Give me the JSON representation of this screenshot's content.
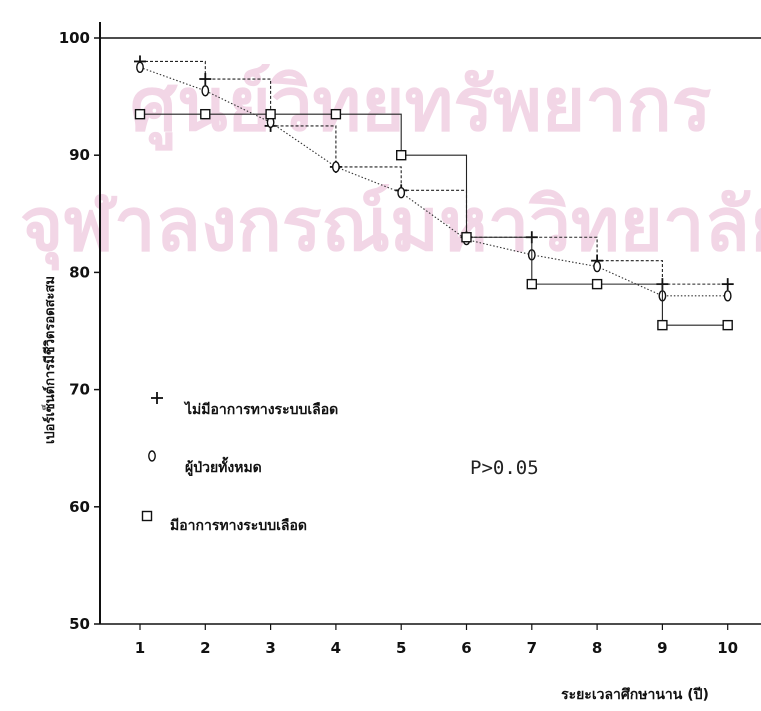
{
  "watermark": [
    "ศูนย์วิทยทรัพยากร",
    "จุฬาลงกรณ์มหาวิทยาลัย"
  ],
  "chart_data": {
    "type": "line",
    "title": "",
    "xlabel": "ระยะเวลาศึกษานาน (ปี)",
    "ylabel": "เปอร์เซ็นต์การมีชีวิตรอดสะสม",
    "xlim": [
      0.4,
      10.5
    ],
    "ylim": [
      50,
      100
    ],
    "x_ticks": [
      1,
      2,
      3,
      4,
      5,
      6,
      7,
      8,
      9,
      10
    ],
    "y_ticks": [
      50,
      60,
      70,
      80,
      90,
      100
    ],
    "grid": false,
    "legend_position": "bottom-left",
    "annotation": "P>0.05",
    "series": [
      {
        "name": "ไม่มีอาการทางระบบเลือด",
        "marker": "plus",
        "step": true,
        "x": [
          1,
          2,
          3,
          4,
          5,
          6,
          7,
          8,
          9,
          10
        ],
        "y": [
          98,
          96.5,
          92.5,
          89,
          87,
          83,
          83,
          81,
          79,
          79
        ]
      },
      {
        "name": "ผู้ป่วยทั้งหมด",
        "marker": "diamond",
        "step": false,
        "x": [
          1,
          2,
          3,
          4,
          5,
          6,
          7,
          8,
          9,
          10
        ],
        "y": [
          97.5,
          95.5,
          92.8,
          89,
          86.8,
          82.8,
          81.5,
          80.5,
          78,
          78
        ]
      },
      {
        "name": "มีอาการทางระบบเลือด",
        "marker": "square",
        "step": true,
        "x": [
          1,
          2,
          3,
          4,
          5,
          6,
          7,
          8,
          9,
          10
        ],
        "y": [
          93.5,
          93.5,
          93.5,
          93.5,
          90,
          83,
          79,
          79,
          75.5,
          75.5
        ]
      }
    ]
  }
}
